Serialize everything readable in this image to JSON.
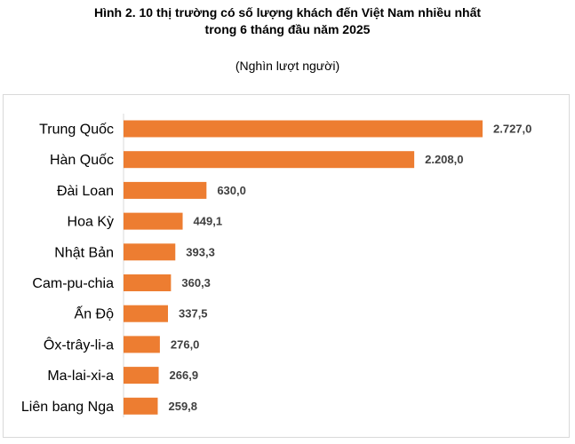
{
  "header": {
    "title_line1": "Hình 2. 10 thị trường có số lượng khách đến Việt Nam nhiều nhất",
    "title_line2": "trong 6 tháng đầu năm 2025",
    "unit": "(Nghìn lượt người)"
  },
  "chart_data": {
    "type": "bar",
    "orientation": "horizontal",
    "title": "Hình 2. 10 thị trường có số lượng khách đến Việt Nam nhiều nhất trong 6 tháng đầu năm 2025",
    "subtitle": "(Nghìn lượt người)",
    "categories": [
      "Trung Quốc",
      "Hàn Quốc",
      "Đài Loan",
      "Hoa Kỳ",
      "Nhật Bản",
      "Cam-pu-chia",
      "Ấn Độ",
      "Ôx-trây-li-a",
      "Ma-lai-xi-a",
      "Liên bang Nga"
    ],
    "values": [
      2727.0,
      2208.0,
      630.0,
      449.1,
      393.3,
      360.3,
      337.5,
      276.0,
      266.9,
      259.8
    ],
    "value_labels": [
      "2.727,0",
      "2.208,0",
      "630,0",
      "449,1",
      "393,3",
      "360,3",
      "337,5",
      "276,0",
      "266,9",
      "259,8"
    ],
    "xlim": [
      0,
      2727.0
    ],
    "bar_color": "#ed7d31",
    "grid": false,
    "legend": "none"
  }
}
